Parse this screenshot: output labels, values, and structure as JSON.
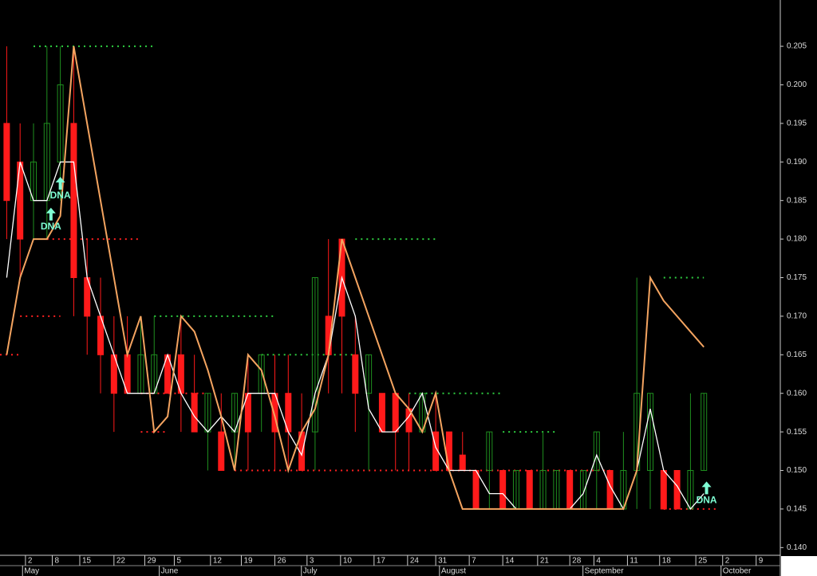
{
  "chart_data": {
    "type": "candlestick",
    "up_color": "#1f8f1f",
    "down_color": "#ff1a1a",
    "background": "#000000",
    "open": [
      0.195,
      0.19,
      0.185,
      0.185,
      0.19,
      0.195,
      0.175,
      0.17,
      0.165,
      0.165,
      0.16,
      0.16,
      0.165,
      0.165,
      0.16,
      0.155,
      0.155,
      0.155,
      0.16,
      0.16,
      0.16,
      0.16,
      0.155,
      0.155,
      0.17,
      0.18,
      0.165,
      0.16,
      0.16,
      0.16,
      0.158,
      0.155,
      0.155,
      0.155,
      0.152,
      0.15,
      0.15,
      0.15,
      0.145,
      0.15,
      0.145,
      0.145,
      0.15,
      0.145,
      0.15,
      0.15,
      0.145,
      0.15,
      0.15,
      0.15,
      0.15,
      0.145,
      0.15
    ],
    "high": [
      0.205,
      0.195,
      0.195,
      0.205,
      0.205,
      0.205,
      0.18,
      0.175,
      0.17,
      0.17,
      0.17,
      0.17,
      0.165,
      0.17,
      0.165,
      0.16,
      0.16,
      0.16,
      0.165,
      0.165,
      0.165,
      0.165,
      0.16,
      0.175,
      0.18,
      0.18,
      0.17,
      0.165,
      0.16,
      0.16,
      0.16,
      0.16,
      0.16,
      0.155,
      0.155,
      0.15,
      0.155,
      0.15,
      0.15,
      0.15,
      0.155,
      0.15,
      0.15,
      0.15,
      0.155,
      0.15,
      0.155,
      0.175,
      0.16,
      0.15,
      0.15,
      0.16,
      0.16
    ],
    "low": [
      0.18,
      0.175,
      0.18,
      0.18,
      0.185,
      0.17,
      0.165,
      0.16,
      0.155,
      0.16,
      0.16,
      0.16,
      0.16,
      0.155,
      0.155,
      0.15,
      0.15,
      0.15,
      0.15,
      0.155,
      0.15,
      0.15,
      0.15,
      0.15,
      0.16,
      0.16,
      0.155,
      0.15,
      0.155,
      0.15,
      0.15,
      0.155,
      0.15,
      0.15,
      0.15,
      0.145,
      0.145,
      0.145,
      0.145,
      0.145,
      0.145,
      0.145,
      0.145,
      0.145,
      0.145,
      0.145,
      0.145,
      0.145,
      0.145,
      0.145,
      0.145,
      0.145,
      0.15
    ],
    "close": [
      0.185,
      0.18,
      0.19,
      0.195,
      0.2,
      0.175,
      0.17,
      0.165,
      0.16,
      0.16,
      0.165,
      0.165,
      0.16,
      0.16,
      0.155,
      0.16,
      0.15,
      0.16,
      0.155,
      0.165,
      0.155,
      0.155,
      0.15,
      0.175,
      0.165,
      0.17,
      0.16,
      0.165,
      0.155,
      0.155,
      0.155,
      0.16,
      0.15,
      0.15,
      0.15,
      0.145,
      0.155,
      0.145,
      0.15,
      0.145,
      0.15,
      0.15,
      0.145,
      0.15,
      0.155,
      0.145,
      0.15,
      0.16,
      0.16,
      0.145,
      0.145,
      0.15,
      0.16
    ],
    "lines": [
      {
        "color": "#ffffff",
        "values": [
          0.175,
          0.19,
          0.185,
          0.185,
          0.19,
          0.19,
          0.175,
          0.17,
          0.165,
          0.16,
          0.16,
          0.16,
          0.165,
          0.16,
          0.157,
          0.155,
          0.157,
          0.155,
          0.16,
          0.16,
          0.16,
          0.155,
          0.152,
          0.16,
          0.165,
          0.175,
          0.17,
          0.158,
          0.155,
          0.155,
          0.157,
          0.16,
          0.153,
          0.15,
          0.15,
          0.15,
          0.147,
          0.147,
          0.145,
          0.145,
          0.145,
          0.145,
          0.145,
          0.147,
          0.152,
          0.148,
          0.145,
          0.15,
          0.158,
          0.15,
          0.148,
          0.145,
          0.147
        ]
      },
      {
        "color": "#f4a460",
        "values": [
          0.165,
          0.175,
          0.18,
          0.18,
          0.183,
          0.205,
          0.195,
          0.185,
          0.175,
          0.165,
          0.17,
          0.155,
          0.157,
          0.17,
          0.168,
          0.163,
          0.157,
          0.15,
          0.165,
          0.163,
          0.157,
          0.15,
          0.155,
          0.158,
          0.165,
          0.18,
          0.175,
          0.17,
          0.165,
          0.16,
          0.158,
          0.155,
          0.16,
          0.15,
          0.145,
          0.145,
          0.145,
          0.145,
          0.145,
          0.145,
          0.145,
          0.145,
          0.145,
          0.145,
          0.145,
          0.145,
          0.145,
          0.15,
          0.175,
          0.172,
          0.17,
          0.168,
          0.166
        ]
      }
    ],
    "levels": [
      {
        "color": "#2ecc40",
        "value": 0.205,
        "from": 2,
        "to": 11
      },
      {
        "color": "#2ecc40",
        "value": 0.17,
        "from": 11,
        "to": 20
      },
      {
        "color": "#2ecc40",
        "value": 0.165,
        "from": 19,
        "to": 26
      },
      {
        "color": "#2ecc40",
        "value": 0.18,
        "from": 26,
        "to": 32
      },
      {
        "color": "#2ecc40",
        "value": 0.16,
        "from": 30,
        "to": 37
      },
      {
        "color": "#2ecc40",
        "value": 0.155,
        "from": 37,
        "to": 41
      },
      {
        "color": "#2ecc40",
        "value": 0.175,
        "from": 49,
        "to": 52
      },
      {
        "color": "#ff2020",
        "value": 0.165,
        "from": -0.5,
        "to": 1
      },
      {
        "color": "#ff2020",
        "value": 0.17,
        "from": 1,
        "to": 4
      },
      {
        "color": "#ff2020",
        "value": 0.18,
        "from": 3,
        "to": 10
      },
      {
        "color": "#ff2020",
        "value": 0.16,
        "from": 10,
        "to": 15
      },
      {
        "color": "#ff2020",
        "value": 0.155,
        "from": 10,
        "to": 12
      },
      {
        "color": "#ff2020",
        "value": 0.15,
        "from": 17,
        "to": 45
      },
      {
        "color": "#ff2020",
        "value": 0.145,
        "from": 49,
        "to": 53
      }
    ],
    "annotations": [
      {
        "text": "DNA",
        "x": 4,
        "y": 0.186
      },
      {
        "text": "DNA",
        "x": 3.3,
        "y": 0.182
      },
      {
        "text": "DNA",
        "x": 52.2,
        "y": 0.1465
      }
    ],
    "annotation_color": "#7fffd4",
    "ylim": [
      0.139,
      0.211
    ],
    "yticks": [
      {
        "value": 0.14,
        "label": "0.140"
      },
      0.145,
      {
        "value": 0.15,
        "label": "0.150"
      },
      0.155,
      {
        "value": 0.16,
        "label": "0.160"
      },
      0.165,
      {
        "value": 0.17,
        "label": "0.170"
      },
      0.175,
      {
        "value": 0.18,
        "label": "0.180"
      },
      0.185,
      {
        "value": 0.19,
        "label": "0.190"
      },
      0.195,
      {
        "value": 0.2,
        "label": "0.200"
      },
      0.205
    ],
    "xlim": [
      -0.5,
      57.7
    ],
    "xticks": [
      {
        "value": 1.4,
        "label": "2"
      },
      {
        "value": 3.4,
        "label": "8"
      },
      {
        "value": 5.45,
        "label": "15"
      },
      {
        "value": 8.0,
        "label": "22"
      },
      {
        "value": 10.3,
        "label": "29"
      },
      {
        "value": 12.5,
        "label": "5"
      },
      {
        "value": 15.2,
        "label": "12"
      },
      {
        "value": 17.5,
        "label": "19"
      },
      {
        "value": 20.0,
        "label": "26"
      },
      {
        "value": 22.4,
        "label": "3"
      },
      {
        "value": 24.9,
        "label": "10"
      },
      {
        "value": 27.4,
        "label": "17"
      },
      {
        "value": 29.9,
        "label": "24"
      },
      {
        "value": 32.0,
        "label": "31"
      },
      {
        "value": 34.5,
        "label": "7"
      },
      {
        "value": 37.0,
        "label": "14"
      },
      {
        "value": 39.6,
        "label": "21"
      },
      {
        "value": 42.0,
        "label": "28"
      },
      {
        "value": 43.8,
        "label": "4"
      },
      {
        "value": 46.3,
        "label": "11"
      },
      {
        "value": 48.7,
        "label": "18"
      },
      {
        "value": 51.4,
        "label": "25"
      },
      {
        "value": 53.4,
        "label": "2"
      },
      {
        "value": 55.9,
        "label": "9"
      }
    ],
    "months": [
      {
        "value": 1.3,
        "label": "May"
      },
      {
        "value": 11.5,
        "label": "June"
      },
      {
        "value": 22.1,
        "label": "July"
      },
      {
        "value": 32.4,
        "label": "August"
      },
      {
        "value": 43.1,
        "label": "September"
      },
      {
        "value": 53.4,
        "label": "October"
      }
    ]
  }
}
